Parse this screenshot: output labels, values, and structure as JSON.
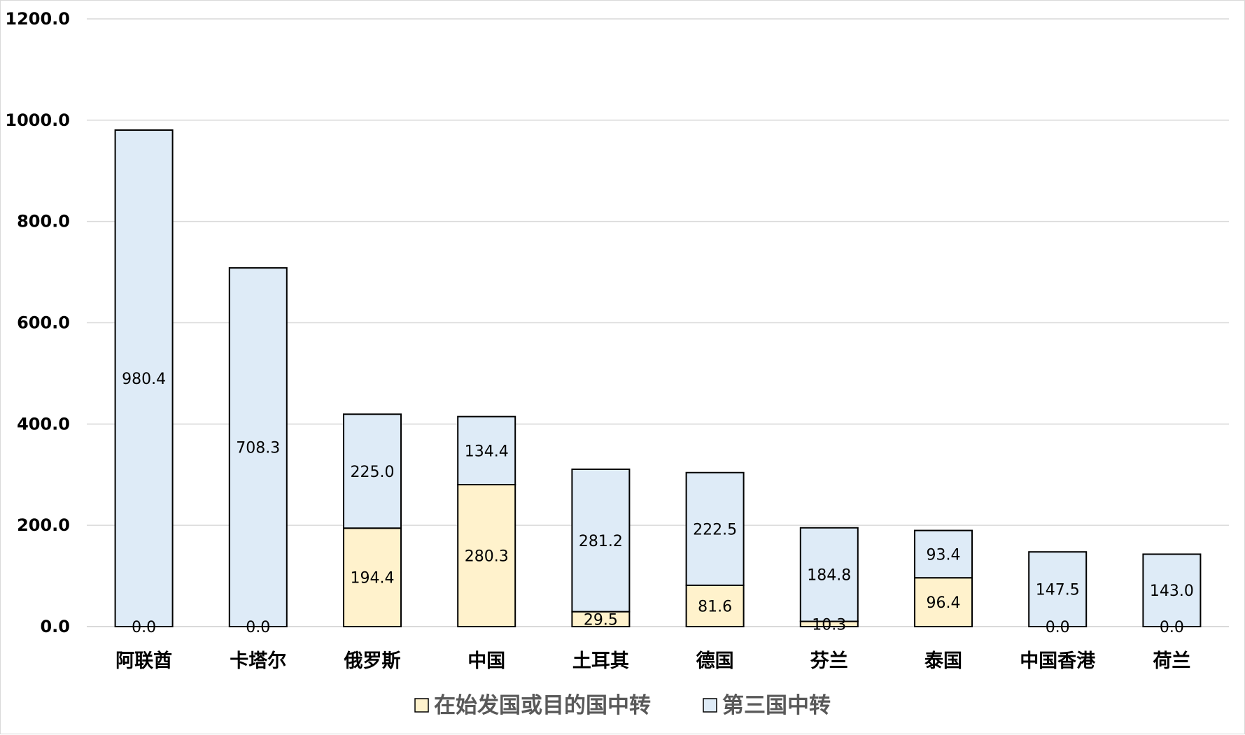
{
  "chart_data": {
    "type": "bar",
    "stacked": true,
    "categories": [
      "阿联酋",
      "卡塔尔",
      "俄罗斯",
      "中国",
      "土耳其",
      "德国",
      "芬兰",
      "泰国",
      "中国香港",
      "荷兰"
    ],
    "series": [
      {
        "name": "在始发国或目的国中转",
        "color": "#fff2cc",
        "values": [
          0.0,
          0.0,
          194.4,
          280.3,
          29.5,
          81.6,
          10.3,
          96.4,
          0.0,
          0.0
        ],
        "labels": [
          "0.0",
          "0.0",
          "194.4",
          "280.3",
          "29.5",
          "81.6",
          "10.3",
          "96.4",
          "0.0",
          "0.0"
        ]
      },
      {
        "name": "第三国中转",
        "color": "#deebf7",
        "values": [
          980.4,
          708.3,
          225.0,
          134.4,
          281.2,
          222.5,
          184.8,
          93.4,
          147.5,
          143.0
        ],
        "labels": [
          "980.4",
          "708.3",
          "225.0",
          "134.4",
          "281.2",
          "222.5",
          "184.8",
          "93.4",
          "147.5",
          "143.0"
        ]
      }
    ],
    "y_ticks": [
      "0.0",
      "200.0",
      "400.0",
      "600.0",
      "800.0",
      "1000.0",
      "1200.0"
    ],
    "ylim": [
      0,
      1200
    ],
    "grid": true,
    "legend_position": "bottom",
    "bar_outline_color": "#000000",
    "grid_color": "#d9d9d9"
  }
}
